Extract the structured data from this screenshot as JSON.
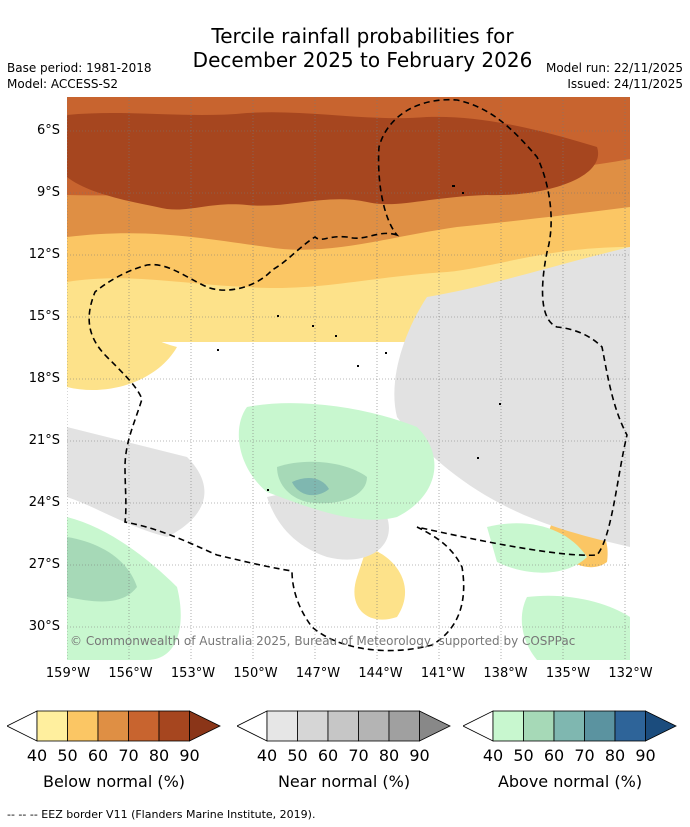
{
  "title": {
    "line1": "Tercile rainfall probabilities for",
    "line2": "December 2025 to February 2026"
  },
  "meta": {
    "base_period": "Base period: 1981-2018",
    "model": "Model: ACCESS-S2",
    "model_run": "Model run: 22/11/2025",
    "issued": "Issued: 24/11/2025"
  },
  "map": {
    "lat_labels": [
      "6°S",
      "9°S",
      "12°S",
      "15°S",
      "18°S",
      "21°S",
      "24°S",
      "27°S",
      "30°S"
    ],
    "lon_labels": [
      "159°W",
      "156°W",
      "153°W",
      "150°W",
      "147°W",
      "144°W",
      "141°W",
      "138°W",
      "135°W",
      "132°W"
    ],
    "copyright": "© Commonwealth of Australia 2025, Bureau of Meteorology, supported by COSPPac"
  },
  "colorbars": [
    {
      "name": "below",
      "label": "Below normal (%)",
      "ticks": [
        "40",
        "50",
        "60",
        "70",
        "80",
        "90"
      ],
      "colors": [
        "#ffef9e",
        "#fbc664",
        "#df8f44",
        "#c8642f",
        "#a6461f",
        "#8a3518"
      ]
    },
    {
      "name": "near",
      "label": "Near normal (%)",
      "ticks": [
        "40",
        "50",
        "60",
        "70",
        "80",
        "90"
      ],
      "colors": [
        "#e6e6e6",
        "#d6d6d6",
        "#c6c6c6",
        "#b4b4b4",
        "#a0a0a0",
        "#888888"
      ]
    },
    {
      "name": "above",
      "label": "Above normal (%)",
      "ticks": [
        "40",
        "50",
        "60",
        "70",
        "80",
        "90"
      ],
      "colors": [
        "#c8f7cf",
        "#a6d9b7",
        "#7fb7b0",
        "#5b93a0",
        "#2e6499",
        "#1b4c7d"
      ]
    }
  ],
  "footnote": "--  --  -- EEZ border V11 (Flanders Marine Institute, 2019)."
}
